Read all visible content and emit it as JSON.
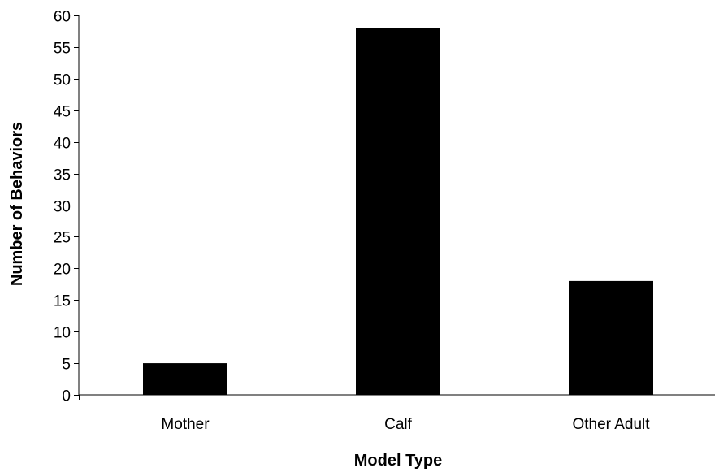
{
  "chart_data": {
    "type": "bar",
    "title": "",
    "xlabel": "Model Type",
    "ylabel": "Number of Behaviors",
    "categories": [
      "Mother",
      "Calf",
      "Other Adult"
    ],
    "values": [
      5,
      58,
      18
    ],
    "ylim": [
      0,
      60
    ],
    "yticks": [
      0,
      5,
      10,
      15,
      20,
      25,
      30,
      35,
      40,
      45,
      50,
      55,
      60
    ],
    "grid": false,
    "legend": "none",
    "bar_color": "#000000"
  }
}
